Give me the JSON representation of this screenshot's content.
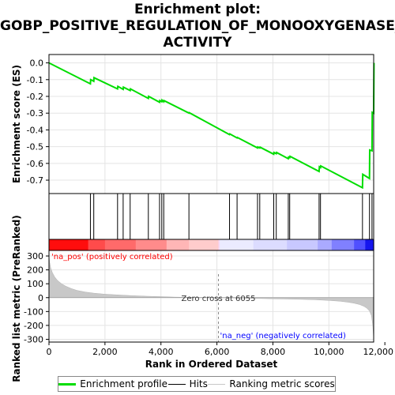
{
  "title_lines": [
    "Enrichment plot:",
    "GOBP_POSITIVE_REGULATION_OF_MONOOXYGENASE_",
    "ACTIVITY"
  ],
  "colors": {
    "es_line": "#00dd00",
    "hits": "#000000",
    "metric_fill": "#c8c8c8",
    "pos_label": "#ff0000",
    "neg_label": "#0000ff",
    "zero_line": "#888888"
  },
  "chart_data": {
    "type": "line",
    "x_max": 11600,
    "es_panel": {
      "ylabel": "Enrichment score (ES)",
      "ylim": [
        -0.78,
        0.05
      ],
      "yticks": [
        0.0,
        -0.1,
        -0.2,
        -0.3,
        -0.4,
        -0.5,
        -0.6,
        -0.7
      ],
      "ytick_labels": [
        "0.0",
        "-0.1",
        "-0.2",
        "-0.3",
        "-0.4",
        "-0.5",
        "-0.6",
        "-0.7"
      ],
      "series": [
        {
          "name": "Enrichment profile",
          "x": [
            0,
            1480,
            1490,
            1600,
            1610,
            2450,
            2460,
            2650,
            2660,
            2900,
            2910,
            3550,
            3560,
            3950,
            3960,
            4030,
            4040,
            4100,
            4110,
            5000,
            5010,
            6450,
            6460,
            6720,
            6730,
            7450,
            7460,
            7530,
            7540,
            8030,
            8040,
            8120,
            8130,
            8550,
            8560,
            8600,
            8610,
            9650,
            9660,
            9700,
            9710,
            11200,
            11210,
            11450,
            11460,
            11540,
            11550,
            11600,
            11610
          ],
          "y": [
            0.0,
            -0.125,
            -0.1,
            -0.11,
            -0.088,
            -0.155,
            -0.14,
            -0.158,
            -0.145,
            -0.165,
            -0.155,
            -0.212,
            -0.2,
            -0.235,
            -0.225,
            -0.232,
            -0.222,
            -0.232,
            -0.225,
            -0.3,
            -0.297,
            -0.428,
            -0.424,
            -0.448,
            -0.445,
            -0.508,
            -0.502,
            -0.508,
            -0.503,
            -0.545,
            -0.535,
            -0.542,
            -0.535,
            -0.572,
            -0.562,
            -0.566,
            -0.558,
            -0.648,
            -0.62,
            -0.625,
            -0.615,
            -0.745,
            -0.665,
            -0.69,
            -0.52,
            -0.525,
            -0.295,
            -0.3,
            0.0
          ]
        }
      ]
    },
    "hits": [
      1480,
      1600,
      2450,
      2650,
      2900,
      3550,
      3950,
      4030,
      4100,
      5000,
      6450,
      6720,
      7450,
      7530,
      8030,
      8120,
      8550,
      8600,
      9650,
      9700,
      11200,
      11450,
      11540,
      11600
    ],
    "metric_panel": {
      "ylabel": "Ranked list metric (PreRanked)",
      "xlabel": "Rank in Ordered Dataset",
      "ylim": [
        -320,
        340
      ],
      "yticks": [
        300,
        200,
        100,
        0,
        -100,
        -200,
        -300
      ],
      "ytick_labels": [
        "300",
        "200",
        "100",
        "0",
        "-100",
        "-200",
        "-300"
      ],
      "xticks": [
        0,
        2000,
        4000,
        6000,
        8000,
        10000,
        12000
      ],
      "xtick_labels": [
        "0",
        "2,000",
        "4,000",
        "6,000",
        "8,000",
        "10,000",
        "12,000"
      ],
      "zero_cross_x": 6055,
      "zero_cross_label": "Zero cross at 6055",
      "pos_label": "'na_pos' (positively correlated)",
      "neg_label": "'na_neg' (negatively correlated)",
      "series": [
        {
          "name": "Ranking metric scores",
          "x": [
            0,
            20,
            60,
            120,
            200,
            300,
            450,
            600,
            800,
            1000,
            1300,
            1600,
            2000,
            2500,
            3000,
            3500,
            4000,
            4500,
            5000,
            5500,
            6055,
            6500,
            7000,
            7500,
            8000,
            8500,
            9000,
            9500,
            10000,
            10400,
            10700,
            10900,
            11100,
            11250,
            11350,
            11450,
            11520,
            11570,
            11600
          ],
          "y": [
            310,
            260,
            215,
            180,
            150,
            125,
            100,
            82,
            65,
            52,
            40,
            32,
            25,
            19,
            14,
            10,
            7,
            4,
            2,
            1,
            0,
            -2,
            -4,
            -6,
            -8,
            -10,
            -12,
            -15,
            -20,
            -26,
            -33,
            -40,
            -50,
            -62,
            -75,
            -95,
            -130,
            -200,
            -300
          ]
        }
      ]
    },
    "legend": {
      "items": [
        "Enrichment profile",
        "Hits",
        "Ranking metric scores"
      ],
      "placement": "bottom"
    }
  }
}
